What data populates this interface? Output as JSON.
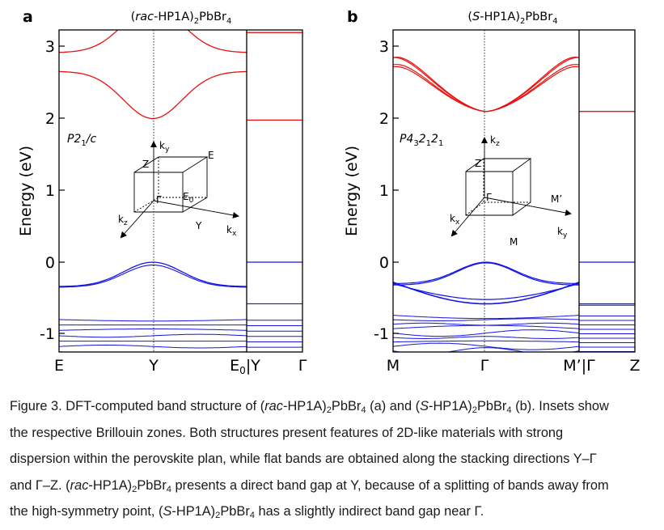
{
  "panels": [
    {
      "letter": "a",
      "title": {
        "pre": "(",
        "it": "rac",
        "mid": "-HP1A)",
        "s1": "2",
        "m2": "PbBr",
        "s2": "4"
      },
      "ylabel": "Energy (eV)",
      "yticks": [
        "3",
        "2",
        "1",
        "0",
        "-1"
      ],
      "xticks": [
        "E",
        "Y",
        "E",
        "0",
        "|Y",
        "Γ"
      ],
      "group": {
        "a": "P2",
        "b": "1",
        "c": "/c"
      },
      "bz": {
        "ky": "k",
        "kysub": "y",
        "kz": "k",
        "kzsub": "z",
        "kx": "k",
        "kxsub": "x",
        "Z": "Z",
        "G": "Γ",
        "E0": "E",
        "E0sub": "0",
        "Y": "Y",
        "E": "E"
      }
    },
    {
      "letter": "b",
      "title": {
        "pre": "(",
        "it": "S",
        "mid": "-HP1A)",
        "s1": "2",
        "m2": "PbBr",
        "s2": "4"
      },
      "ylabel": "Energy (eV)",
      "yticks": [
        "3",
        "2",
        "1",
        "0",
        "-1"
      ],
      "xticks": [
        "M",
        "Γ",
        "M’|Γ",
        "Z"
      ],
      "group": {
        "a": "P4",
        "b": "3",
        "c": "2",
        "d": "1",
        "e": "2",
        "f": "1"
      },
      "bz": {
        "kz": "k",
        "kzsub": "z",
        "kx": "k",
        "kxsub": "x",
        "ky": "k",
        "kysub": "y",
        "Z": "Z",
        "G": "Γ",
        "M1": "M’",
        "M": "M"
      }
    }
  ],
  "caption": {
    "l1a": "Figure 3. DFT-computed band structure of (",
    "l1b": "rac",
    "l1c": "-HP1A)",
    "l1d": "2",
    "l1e": "PbBr",
    "l1f": "4",
    "l1g": " (a) and (",
    "l1h": "S",
    "l1i": "-HP1A)",
    "l1j": "2",
    "l1k": "PbBr",
    "l1l": "4",
    "l1m": " (b). Insets show",
    "l2": "the respective Brillouin zones. Both structures present features of 2D-like materials with strong",
    "l3": "dispersion within the perovskite plan, while flat bands are obtained along the stacking directions Y–Γ",
    "l4a": "and Γ–Z. (",
    "l4b": "rac",
    "l4c": "-HP1A)",
    "l4d": "2",
    "l4e": "PbBr",
    "l4f": "4",
    "l4g": " presents a direct band gap at Y, because of a splitting of bands away from",
    "l5a": "the high-symmetry point, (",
    "l5b": "S",
    "l5c": "-HP1A)",
    "l5d": "2",
    "l5e": "PbBr",
    "l5f": "4",
    "l5g": " has a slightly indirect band gap near Γ."
  },
  "colors": {
    "conduction": "#e8110f",
    "valence": "#1414e6",
    "frame": "#000000",
    "text": "#1a1a1a"
  }
}
